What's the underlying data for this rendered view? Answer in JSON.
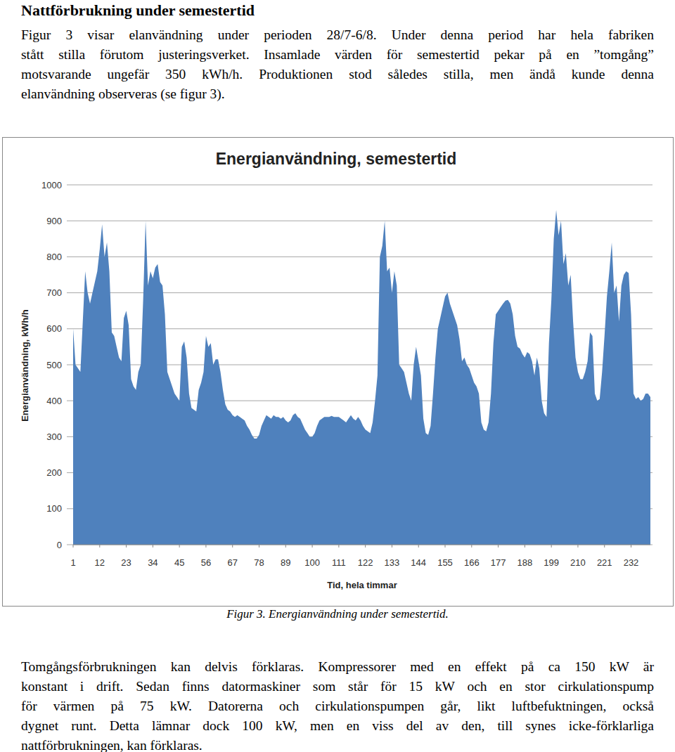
{
  "heading": "Nattförbrukning under semestertid",
  "paragraphs": [
    [
      "Figur 3 visar elanvändning under perioden 28/7-6/8. Under denna period har hela fabriken",
      "stått stilla förutom justeringsverket. Insamlade värden för semestertid pekar på en ”tomgång”",
      "motsvarande ungefär 350 kWh/h. Produktionen stod således stilla, men ändå kunde denna",
      "elanvändning observeras (se figur 3)."
    ],
    [
      "Tomgångsförbrukningen kan delvis förklaras. Kompressorer med en effekt på ca 150 kW är",
      "konstant i drift. Sedan finns datormaskiner som står för 15 kW och en stor cirkulationspump",
      "för värmen på 75 kW. Datorerna och cirkulationspumpen går, likt luftbefuktningen, också",
      "dygnet runt. Detta lämnar dock 100 kW, men en viss del av den, till synes icke-förklarliga",
      "nattförbrukningen, kan förklaras."
    ]
  ],
  "caption": "Figur 3. Energianvändning under semestertid.",
  "chart_data": {
    "type": "area",
    "title": "Energianvändning, semestertid",
    "x_label": "Tid, hela timmar",
    "y_label": "Energianvändning, kWh/h",
    "color": "#4f81bd",
    "grid": true,
    "xlim": [
      1,
      240
    ],
    "xticks": [
      1,
      12,
      23,
      34,
      45,
      56,
      67,
      78,
      89,
      100,
      111,
      122,
      133,
      144,
      155,
      166,
      177,
      188,
      199,
      210,
      221,
      232
    ],
    "ylim": [
      0,
      1000
    ],
    "yticks": [
      0,
      100,
      200,
      300,
      400,
      500,
      600,
      700,
      800,
      900,
      1000
    ],
    "x": [
      1,
      2,
      3,
      4,
      5,
      6,
      7,
      8,
      9,
      10,
      11,
      12,
      13,
      14,
      15,
      16,
      17,
      18,
      19,
      20,
      21,
      22,
      23,
      24,
      25,
      26,
      27,
      28,
      29,
      30,
      31,
      32,
      33,
      34,
      35,
      36,
      37,
      38,
      39,
      40,
      41,
      42,
      43,
      44,
      45,
      46,
      47,
      48,
      49,
      50,
      51,
      52,
      53,
      54,
      55,
      56,
      57,
      58,
      59,
      60,
      61,
      62,
      63,
      64,
      65,
      66,
      67,
      68,
      69,
      70,
      71,
      72,
      73,
      74,
      75,
      76,
      77,
      78,
      79,
      80,
      81,
      82,
      83,
      84,
      85,
      86,
      87,
      88,
      89,
      90,
      91,
      92,
      93,
      94,
      95,
      96,
      97,
      98,
      99,
      100,
      101,
      102,
      103,
      104,
      105,
      106,
      107,
      108,
      109,
      110,
      111,
      112,
      113,
      114,
      115,
      116,
      117,
      118,
      119,
      120,
      121,
      122,
      123,
      124,
      125,
      126,
      127,
      128,
      129,
      130,
      131,
      132,
      133,
      134,
      135,
      136,
      137,
      138,
      139,
      140,
      141,
      142,
      143,
      144,
      145,
      146,
      147,
      148,
      149,
      150,
      151,
      152,
      153,
      154,
      155,
      156,
      157,
      158,
      159,
      160,
      161,
      162,
      163,
      164,
      165,
      166,
      167,
      168,
      169,
      170,
      171,
      172,
      173,
      174,
      175,
      176,
      177,
      178,
      179,
      180,
      181,
      182,
      183,
      184,
      185,
      186,
      187,
      188,
      189,
      190,
      191,
      192,
      193,
      194,
      195,
      196,
      197,
      198,
      199,
      200,
      201,
      202,
      203,
      204,
      205,
      206,
      207,
      208,
      209,
      210,
      211,
      212,
      213,
      214,
      215,
      216,
      217,
      218,
      219,
      220,
      221,
      222,
      223,
      224,
      225,
      226,
      227,
      228,
      229,
      230,
      231,
      232,
      233,
      234,
      235,
      236,
      237,
      238,
      239,
      240
    ],
    "values": [
      600,
      500,
      490,
      480,
      620,
      760,
      700,
      670,
      700,
      730,
      760,
      820,
      890,
      800,
      840,
      760,
      590,
      580,
      550,
      520,
      510,
      630,
      650,
      610,
      460,
      440,
      430,
      480,
      500,
      680,
      900,
      720,
      760,
      740,
      770,
      780,
      730,
      720,
      640,
      480,
      460,
      440,
      420,
      410,
      400,
      550,
      565,
      520,
      420,
      380,
      375,
      370,
      430,
      450,
      480,
      580,
      550,
      560,
      500,
      515,
      515,
      480,
      430,
      390,
      375,
      370,
      360,
      355,
      360,
      355,
      350,
      345,
      330,
      320,
      305,
      295,
      295,
      305,
      330,
      345,
      360,
      355,
      350,
      360,
      355,
      355,
      350,
      355,
      345,
      340,
      345,
      360,
      365,
      355,
      350,
      335,
      320,
      310,
      300,
      300,
      310,
      330,
      345,
      350,
      355,
      355,
      355,
      358,
      355,
      355,
      355,
      350,
      345,
      340,
      350,
      360,
      350,
      345,
      355,
      345,
      330,
      320,
      315,
      310,
      340,
      400,
      470,
      800,
      830,
      900,
      760,
      770,
      700,
      760,
      720,
      500,
      490,
      480,
      450,
      420,
      400,
      500,
      550,
      510,
      470,
      350,
      310,
      305,
      330,
      420,
      520,
      600,
      630,
      660,
      690,
      700,
      670,
      650,
      630,
      610,
      570,
      510,
      520,
      500,
      490,
      470,
      450,
      440,
      420,
      340,
      320,
      315,
      340,
      420,
      560,
      640,
      650,
      660,
      670,
      678,
      680,
      670,
      640,
      580,
      550,
      545,
      530,
      520,
      535,
      530,
      510,
      470,
      520,
      490,
      400,
      365,
      355,
      560,
      680,
      850,
      930,
      860,
      900,
      780,
      810,
      720,
      750,
      620,
      520,
      480,
      460,
      460,
      480,
      510,
      590,
      580,
      420,
      400,
      405,
      480,
      580,
      690,
      760,
      840,
      700,
      720,
      620,
      720,
      750,
      760,
      755,
      640,
      420,
      405,
      410,
      400,
      405,
      420,
      420,
      410
    ]
  }
}
